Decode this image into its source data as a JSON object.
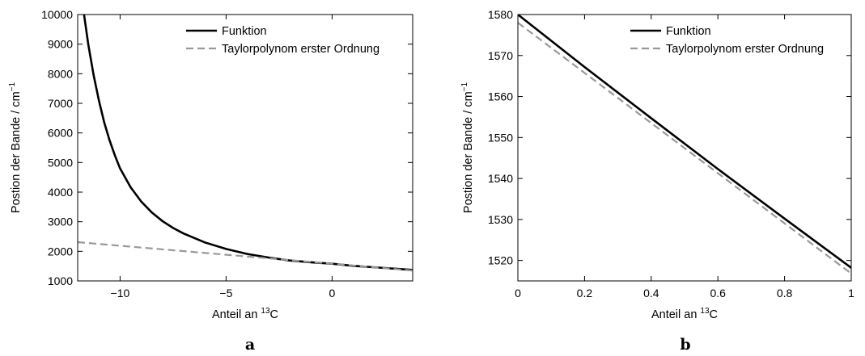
{
  "chart_data": [
    {
      "type": "line",
      "panel_label": "a",
      "xlabel": "Anteil an",
      "xlabel_sup": "13",
      "xlabel_suffix": "C",
      "ylabel": "Postion der Bande / cm",
      "ylabel_sup": "−1",
      "xlim": [
        -12,
        3.8
      ],
      "ylim": [
        1000,
        10000
      ],
      "xticks": [
        -10,
        -5,
        0
      ],
      "xtick_labels": [
        "−10",
        "−5",
        "0"
      ],
      "yticks": [
        1000,
        2000,
        3000,
        4000,
        5000,
        6000,
        7000,
        8000,
        9000,
        10000
      ],
      "ytick_labels": [
        "1000",
        "2000",
        "3000",
        "4000",
        "5000",
        "6000",
        "7000",
        "8000",
        "9000",
        "10000"
      ],
      "grid": false,
      "legend_position": "top-right",
      "series": [
        {
          "name": "Funktion",
          "color": "#000000",
          "style": "solid",
          "x": [
            -11.7,
            -11.5,
            -11.25,
            -11,
            -10.75,
            -10.5,
            -10.25,
            -10,
            -9.5,
            -9,
            -8.5,
            -8,
            -7.5,
            -7,
            -6,
            -5,
            -4,
            -3,
            -2,
            -1,
            0,
            1,
            2,
            3,
            3.8
          ],
          "y": [
            10000,
            8990,
            7960,
            7100,
            6360,
            5760,
            5250,
            4800,
            4160,
            3680,
            3310,
            3020,
            2790,
            2600,
            2300,
            2080,
            1910,
            1790,
            1690,
            1630,
            1580,
            1510,
            1460,
            1410,
            1370
          ]
        },
        {
          "name": "Taylorpolynom erster Ordnung",
          "color": "#999999",
          "style": "dashed",
          "x": [
            -12,
            3.8
          ],
          "y": [
            2310,
            1350
          ]
        }
      ]
    },
    {
      "type": "line",
      "panel_label": "b",
      "xlabel": "Anteil an",
      "xlabel_sup": "13",
      "xlabel_suffix": "C",
      "ylabel": "Postion der Bande / cm",
      "ylabel_sup": "−1",
      "xlim": [
        0,
        1
      ],
      "ylim": [
        1515,
        1580
      ],
      "xticks": [
        0,
        0.2,
        0.4,
        0.6,
        0.8,
        1
      ],
      "xtick_labels": [
        "0",
        "0.2",
        "0.4",
        "0.6",
        "0.8",
        "1"
      ],
      "yticks": [
        1520,
        1530,
        1540,
        1550,
        1560,
        1570,
        1580
      ],
      "ytick_labels": [
        "1520",
        "1530",
        "1540",
        "1550",
        "1560",
        "1570",
        "1580"
      ],
      "grid": false,
      "legend_position": "top-right",
      "series": [
        {
          "name": "Funktion",
          "color": "#000000",
          "style": "solid",
          "x": [
            0,
            0.2,
            0.4,
            0.6,
            0.8,
            1
          ],
          "y": [
            1580,
            1567.2,
            1554.7,
            1542.3,
            1530.2,
            1518.2
          ]
        },
        {
          "name": "Taylorpolynom erster Ordnung",
          "color": "#999999",
          "style": "dashed",
          "x": [
            0,
            1
          ],
          "y": [
            1578,
            1516.8
          ]
        }
      ]
    }
  ]
}
